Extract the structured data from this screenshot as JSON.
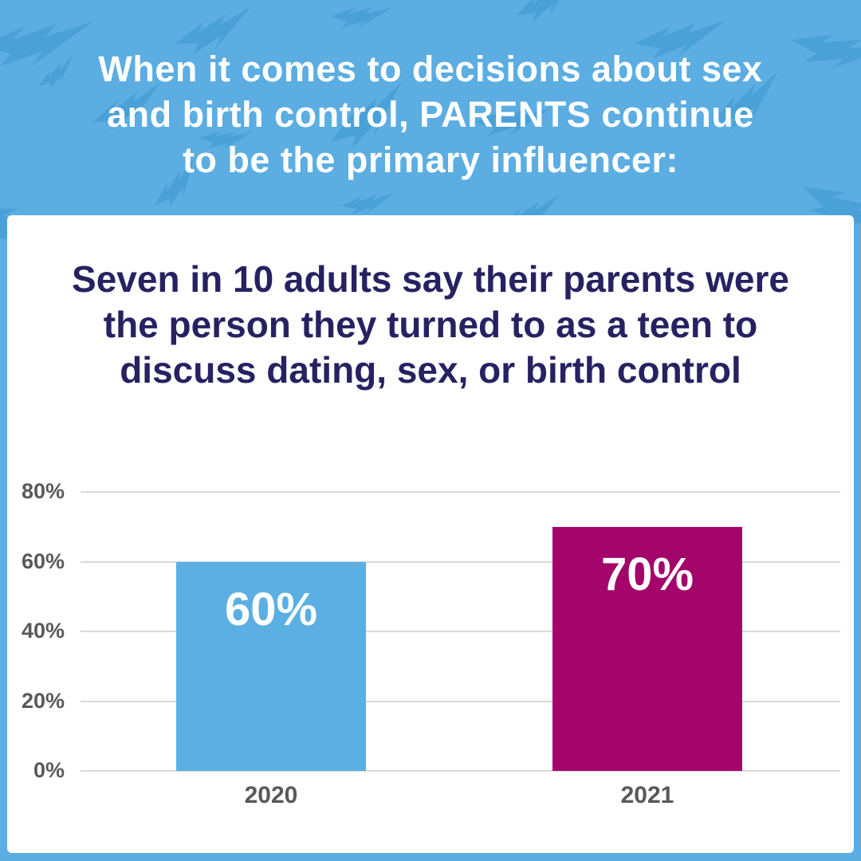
{
  "header": {
    "title_lines": [
      "When it comes to decisions about sex",
      "and birth control, PARENTS continue",
      "to be the primary influencer:"
    ]
  },
  "card": {
    "subtitle_lines": [
      "Seven in 10 adults say their parents were",
      "the person they turned to as a teen to",
      "discuss dating, sex, or birth control"
    ]
  },
  "chart_data": {
    "type": "bar",
    "title": "Seven in 10 adults say their parents were the person they turned to as a teen to discuss dating, sex, or birth control",
    "categories": [
      "2020",
      "2021"
    ],
    "values": [
      60,
      70
    ],
    "bar_labels": [
      "60%",
      "70%"
    ],
    "bar_colors": [
      "#5BAFE3",
      "#A3056B"
    ],
    "y_ticks": [
      {
        "value": 0,
        "label": "0%"
      },
      {
        "value": 20,
        "label": "20%"
      },
      {
        "value": 40,
        "label": "40%"
      },
      {
        "value": 60,
        "label": "60%"
      },
      {
        "value": 80,
        "label": "80%"
      }
    ],
    "ylim": [
      0,
      80
    ],
    "xlabel": "",
    "ylabel": "",
    "grid": true,
    "legend": "none"
  },
  "colors": {
    "background_blue": "#5BADE2",
    "bolt_blue": "#4AA1D8",
    "navy_text": "#262262",
    "axis_gray": "#595959",
    "gridline_gray": "#D9D9D9",
    "bar_2020": "#5BAFE3",
    "bar_2021": "#A3056B",
    "title_white": "#FFFFFF"
  }
}
